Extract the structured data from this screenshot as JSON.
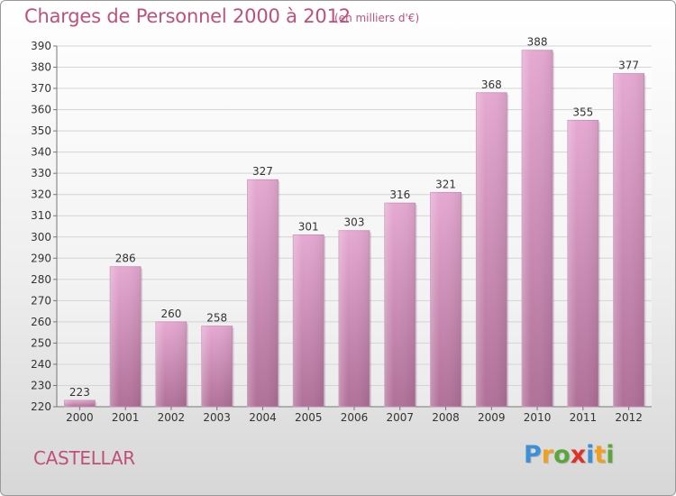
{
  "header": {
    "title": "Charges de Personnel 2000 à 2012",
    "subtitle": "(en milliers d'€)"
  },
  "footer": {
    "city": "CASTELLAR",
    "logo_letters": [
      "P",
      "r",
      "o",
      "x",
      "i",
      "t",
      "i"
    ],
    "logo_colors": [
      "#3d8fd6",
      "#f0a020",
      "#5aa63a",
      "#e0302a",
      "#3d8fd6",
      "#f0a020",
      "#5aa63a"
    ]
  },
  "colors": {
    "bar_top": "#e6a9d2",
    "bar_bottom": "#b07098",
    "accent": "#c0507a"
  },
  "chart_data": {
    "type": "bar",
    "categories": [
      "2000",
      "2001",
      "2002",
      "2003",
      "2004",
      "2005",
      "2006",
      "2007",
      "2008",
      "2009",
      "2010",
      "2011",
      "2012"
    ],
    "values": [
      223,
      286,
      260,
      258,
      327,
      301,
      303,
      316,
      321,
      368,
      388,
      355,
      377
    ],
    "title": "Charges de Personnel 2000 à 2012",
    "xlabel": "",
    "ylabel": "",
    "ylim": [
      220,
      390
    ],
    "yticks": [
      220,
      230,
      240,
      250,
      260,
      270,
      280,
      290,
      300,
      310,
      320,
      330,
      340,
      350,
      360,
      370,
      380,
      390
    ],
    "grid": true,
    "legend": "none"
  }
}
